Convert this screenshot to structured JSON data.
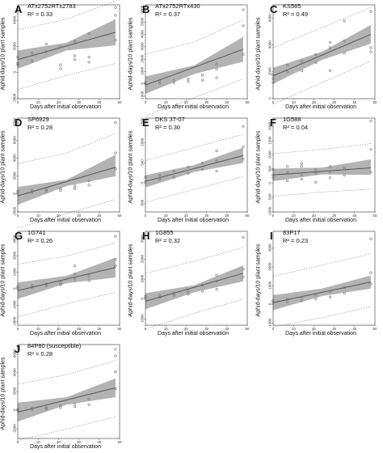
{
  "figure": {
    "y_axis_label": "Aphid-days/10 plant samples",
    "x_axis_label": "Days after initial observation"
  },
  "colors": {
    "band": "#a6a6a6",
    "trend_line": "#555555",
    "prediction_line": "#8a8a8a",
    "points": "#777777"
  },
  "chart_data": [
    {
      "type": "scatter",
      "label": "A",
      "genotype": "ATx2752RTx2783",
      "r2": "R² = 0.33",
      "ylim": [
        -2000,
        5200
      ],
      "yticks": [
        -2000,
        0,
        2000,
        4000
      ],
      "xlim": [
        0,
        50
      ],
      "xticks": [
        0,
        10,
        20,
        30,
        40,
        50
      ],
      "points": [
        [
          0,
          600
        ],
        [
          0,
          1200
        ],
        [
          0,
          700
        ],
        [
          7,
          900
        ],
        [
          7,
          1500
        ],
        [
          14,
          1600
        ],
        [
          14,
          2200
        ],
        [
          21,
          2000
        ],
        [
          21,
          600
        ],
        [
          21,
          300
        ],
        [
          28,
          2400
        ],
        [
          28,
          1300
        ],
        [
          28,
          1000
        ],
        [
          35,
          1200
        ],
        [
          35,
          800
        ],
        [
          35,
          3000
        ],
        [
          48,
          2500
        ],
        [
          48,
          5000
        ],
        [
          48,
          4400
        ]
      ],
      "trend": [
        [
          0,
          1000
        ],
        [
          48,
          3100
        ]
      ],
      "band": [
        [
          0,
          300,
          1700
        ],
        [
          24,
          1700,
          2300
        ],
        [
          48,
          2100,
          4100
        ]
      ],
      "pred_upper": [
        [
          0,
          3300
        ],
        [
          24,
          4100
        ],
        [
          48,
          5500
        ]
      ],
      "pred_lower": [
        [
          0,
          -1300
        ],
        [
          24,
          -200
        ],
        [
          48,
          700
        ]
      ]
    },
    {
      "type": "scatter",
      "label": "B",
      "genotype": "ATx2752RTx430",
      "r2": "R² = 0.37",
      "ylim": [
        -1200,
        6400
      ],
      "yticks": [
        -1000,
        0,
        1000,
        2000,
        3000,
        4000,
        5000,
        6000
      ],
      "xlim": [
        0,
        50
      ],
      "xticks": [
        0,
        10,
        20,
        30,
        40,
        50
      ],
      "points": [
        [
          0,
          0
        ],
        [
          0,
          100
        ],
        [
          7,
          50
        ],
        [
          7,
          200
        ],
        [
          14,
          100
        ],
        [
          14,
          300
        ],
        [
          21,
          200
        ],
        [
          21,
          400
        ],
        [
          28,
          300
        ],
        [
          28,
          700
        ],
        [
          35,
          500
        ],
        [
          35,
          1200
        ],
        [
          35,
          1600
        ],
        [
          48,
          6000
        ],
        [
          48,
          4700
        ],
        [
          48,
          2400
        ]
      ],
      "trend": [
        [
          0,
          -100
        ],
        [
          48,
          2800
        ]
      ],
      "band": [
        [
          0,
          -800,
          600
        ],
        [
          24,
          800,
          1500
        ],
        [
          48,
          1800,
          3800
        ]
      ],
      "pred_upper": [
        [
          0,
          2400
        ],
        [
          24,
          3400
        ],
        [
          48,
          5200
        ]
      ],
      "pred_lower": [
        [
          0,
          -2600
        ],
        [
          24,
          -1100
        ],
        [
          48,
          400
        ]
      ]
    },
    {
      "type": "scatter",
      "label": "C",
      "genotype": "KS585",
      "r2": "R² = 0.49",
      "ylim": [
        0,
        7000
      ],
      "yticks": [
        0,
        2000,
        4000,
        6000
      ],
      "xlim": [
        0,
        50
      ],
      "xticks": [
        0,
        10,
        20,
        30,
        40,
        50
      ],
      "points": [
        [
          0,
          1200
        ],
        [
          0,
          1500
        ],
        [
          0,
          1800
        ],
        [
          7,
          2000
        ],
        [
          7,
          2500
        ],
        [
          14,
          2100
        ],
        [
          14,
          2800
        ],
        [
          21,
          3300
        ],
        [
          21,
          2700
        ],
        [
          28,
          4200
        ],
        [
          28,
          3800
        ],
        [
          28,
          2100
        ],
        [
          35,
          4300
        ],
        [
          35,
          3400
        ],
        [
          35,
          5800
        ],
        [
          48,
          3500
        ],
        [
          48,
          6500
        ],
        [
          48,
          3800
        ]
      ],
      "trend": [
        [
          0,
          1700
        ],
        [
          48,
          4800
        ]
      ],
      "band": [
        [
          0,
          1100,
          2300
        ],
        [
          24,
          2900,
          3500
        ],
        [
          48,
          4100,
          5500
        ]
      ],
      "pred_upper": [
        [
          0,
          3800
        ],
        [
          24,
          5300
        ],
        [
          48,
          6800
        ]
      ],
      "pred_lower": [
        [
          0,
          -400
        ],
        [
          24,
          1200
        ],
        [
          48,
          2800
        ]
      ]
    },
    {
      "type": "scatter",
      "label": "D",
      "genotype": "SP6929",
      "r2": "R² = 0.28",
      "ylim": [
        -2000,
        8500
      ],
      "yticks": [
        -2000,
        0,
        2000,
        4000,
        6000,
        8000
      ],
      "xlim": [
        0,
        50
      ],
      "xticks": [
        0,
        10,
        20,
        30,
        40,
        50
      ],
      "points": [
        [
          0,
          100
        ],
        [
          0,
          300
        ],
        [
          7,
          200
        ],
        [
          7,
          400
        ],
        [
          14,
          300
        ],
        [
          14,
          500
        ],
        [
          21,
          400
        ],
        [
          21,
          600
        ],
        [
          28,
          600
        ],
        [
          28,
          900
        ],
        [
          35,
          1000
        ],
        [
          35,
          1500
        ],
        [
          48,
          8000
        ],
        [
          48,
          4600
        ],
        [
          48,
          2800
        ]
      ],
      "trend": [
        [
          0,
          -200
        ],
        [
          48,
          3000
        ]
      ],
      "band": [
        [
          0,
          -1200,
          800
        ],
        [
          24,
          900,
          1600
        ],
        [
          48,
          2000,
          4400
        ]
      ],
      "pred_upper": [
        [
          0,
          3400
        ],
        [
          24,
          4600
        ],
        [
          48,
          6800
        ]
      ],
      "pred_lower": [
        [
          0,
          -3800
        ],
        [
          24,
          -2200
        ],
        [
          48,
          -600
        ]
      ]
    },
    {
      "type": "scatter",
      "label": "E",
      "genotype": "DKS 37-07",
      "r2": "R² = 0.30",
      "ylim": [
        -700,
        1600
      ],
      "yticks": [
        -500,
        0,
        500,
        1000,
        1500
      ],
      "xlim": [
        0,
        50
      ],
      "xticks": [
        0,
        10,
        20,
        30,
        40,
        50
      ],
      "points": [
        [
          0,
          50
        ],
        [
          0,
          150
        ],
        [
          7,
          100
        ],
        [
          7,
          200
        ],
        [
          14,
          150
        ],
        [
          14,
          300
        ],
        [
          21,
          250
        ],
        [
          21,
          400
        ],
        [
          28,
          350
        ],
        [
          28,
          500
        ],
        [
          35,
          300
        ],
        [
          35,
          550
        ],
        [
          35,
          800
        ],
        [
          48,
          1400
        ],
        [
          48,
          600
        ],
        [
          48,
          900
        ]
      ],
      "trend": [
        [
          0,
          50
        ],
        [
          48,
          680
        ]
      ],
      "band": [
        [
          0,
          -100,
          200
        ],
        [
          24,
          280,
          450
        ],
        [
          48,
          500,
          880
        ]
      ],
      "pred_upper": [
        [
          0,
          560
        ],
        [
          24,
          880
        ],
        [
          48,
          1200
        ]
      ],
      "pred_lower": [
        [
          0,
          -460
        ],
        [
          24,
          -150
        ],
        [
          48,
          170
        ]
      ]
    },
    {
      "type": "scatter",
      "label": "F",
      "genotype": "1G588",
      "r2": "R² = 0.04",
      "ylim": [
        -1000,
        2300
      ],
      "yticks": [
        -1000,
        -500,
        0,
        500,
        1000,
        1500,
        2000
      ],
      "xlim": [
        0,
        50
      ],
      "xticks": [
        0,
        10,
        20,
        30,
        40,
        50
      ],
      "points": [
        [
          0,
          200
        ],
        [
          0,
          500
        ],
        [
          0,
          300
        ],
        [
          7,
          400
        ],
        [
          7,
          600
        ],
        [
          7,
          100
        ],
        [
          14,
          300
        ],
        [
          14,
          700
        ],
        [
          14,
          600
        ],
        [
          14,
          150
        ],
        [
          21,
          350
        ],
        [
          21,
          500
        ],
        [
          21,
          50
        ],
        [
          28,
          400
        ],
        [
          28,
          200
        ],
        [
          28,
          600
        ],
        [
          35,
          300
        ],
        [
          35,
          550
        ],
        [
          48,
          2200
        ],
        [
          48,
          1200
        ],
        [
          48,
          400
        ]
      ],
      "trend": [
        [
          0,
          300
        ],
        [
          48,
          550
        ]
      ],
      "band": [
        [
          0,
          80,
          520
        ],
        [
          24,
          320,
          560
        ],
        [
          48,
          300,
          850
        ]
      ],
      "pred_upper": [
        [
          0,
          1050
        ],
        [
          24,
          1200
        ],
        [
          48,
          1400
        ]
      ],
      "pred_lower": [
        [
          0,
          -450
        ],
        [
          24,
          -300
        ],
        [
          48,
          -200
        ]
      ]
    },
    {
      "type": "scatter",
      "label": "G",
      "genotype": "1G741",
      "r2": "R² = 0.26",
      "ylim": [
        -2200,
        3500
      ],
      "yticks": [
        -2000,
        -1000,
        0,
        1000,
        2000,
        3000
      ],
      "xlim": [
        0,
        50
      ],
      "xticks": [
        0,
        10,
        20,
        30,
        40,
        50
      ],
      "points": [
        [
          0,
          50
        ],
        [
          0,
          150
        ],
        [
          7,
          100
        ],
        [
          7,
          200
        ],
        [
          14,
          200
        ],
        [
          14,
          300
        ],
        [
          21,
          250
        ],
        [
          21,
          400
        ],
        [
          28,
          600
        ],
        [
          28,
          900
        ],
        [
          28,
          1400
        ],
        [
          35,
          500
        ],
        [
          35,
          800
        ],
        [
          48,
          3200
        ],
        [
          48,
          1800
        ],
        [
          48,
          1400
        ]
      ],
      "trend": [
        [
          0,
          -100
        ],
        [
          48,
          1300
        ]
      ],
      "band": [
        [
          0,
          -600,
          400
        ],
        [
          24,
          350,
          800
        ],
        [
          48,
          700,
          1900
        ]
      ],
      "pred_upper": [
        [
          0,
          1500
        ],
        [
          24,
          2000
        ],
        [
          48,
          2800
        ]
      ],
      "pred_lower": [
        [
          0,
          -1700
        ],
        [
          24,
          -900
        ],
        [
          48,
          -200
        ]
      ]
    },
    {
      "type": "scatter",
      "label": "H",
      "genotype": "1G855",
      "r2": "R² = 0.32",
      "ylim": [
        -1300,
        3400
      ],
      "yticks": [
        -1000,
        0,
        1000,
        2000,
        3000
      ],
      "xlim": [
        0,
        50
      ],
      "xticks": [
        0,
        10,
        20,
        30,
        40,
        50
      ],
      "points": [
        [
          0,
          50
        ],
        [
          0,
          150
        ],
        [
          7,
          100
        ],
        [
          7,
          200
        ],
        [
          14,
          200
        ],
        [
          14,
          300
        ],
        [
          21,
          250
        ],
        [
          21,
          400
        ],
        [
          28,
          400
        ],
        [
          28,
          700
        ],
        [
          35,
          500
        ],
        [
          35,
          900
        ],
        [
          35,
          1200
        ],
        [
          48,
          3100
        ],
        [
          48,
          1500
        ],
        [
          48,
          1100
        ]
      ],
      "trend": [
        [
          0,
          -100
        ],
        [
          48,
          1300
        ]
      ],
      "band": [
        [
          0,
          -500,
          300
        ],
        [
          24,
          350,
          700
        ],
        [
          48,
          900,
          1700
        ]
      ],
      "pred_upper": [
        [
          0,
          1300
        ],
        [
          24,
          1900
        ],
        [
          48,
          2600
        ]
      ],
      "pred_lower": [
        [
          0,
          -1500
        ],
        [
          24,
          -700
        ],
        [
          48,
          0
        ]
      ]
    },
    {
      "type": "scatter",
      "label": "I",
      "genotype": "83P17",
      "r2": "R² = 0.23",
      "ylim": [
        -1100,
        3900
      ],
      "yticks": [
        -1000,
        0,
        1000,
        2000,
        3000
      ],
      "xlim": [
        0,
        50
      ],
      "xticks": [
        0,
        10,
        20,
        30,
        40,
        50
      ],
      "points": [
        [
          0,
          100
        ],
        [
          0,
          200
        ],
        [
          7,
          150
        ],
        [
          7,
          300
        ],
        [
          14,
          200
        ],
        [
          14,
          400
        ],
        [
          21,
          300
        ],
        [
          21,
          500
        ],
        [
          28,
          400
        ],
        [
          28,
          700
        ],
        [
          35,
          600
        ],
        [
          35,
          900
        ],
        [
          48,
          3500
        ],
        [
          48,
          1700
        ],
        [
          48,
          1100
        ]
      ],
      "trend": [
        [
          0,
          100
        ],
        [
          48,
          1200
        ]
      ],
      "band": [
        [
          0,
          -300,
          500
        ],
        [
          24,
          450,
          850
        ],
        [
          48,
          850,
          1550
        ]
      ],
      "pred_upper": [
        [
          0,
          1500
        ],
        [
          24,
          2100
        ],
        [
          48,
          2700
        ]
      ],
      "pred_lower": [
        [
          0,
          -1200
        ],
        [
          24,
          -700
        ],
        [
          48,
          -100
        ]
      ]
    },
    {
      "type": "scatter",
      "label": "J",
      "genotype": "84P80 (susceptible)",
      "r2": "R² = 0.28",
      "ylim": [
        -3000,
        7000
      ],
      "yticks": [
        -2000,
        0,
        2000,
        4000,
        6000
      ],
      "xlim": [
        0,
        50
      ],
      "xticks": [
        0,
        10,
        20,
        30,
        40,
        50
      ],
      "points": [
        [
          0,
          0
        ],
        [
          0,
          100
        ],
        [
          7,
          100
        ],
        [
          7,
          200
        ],
        [
          14,
          150
        ],
        [
          14,
          300
        ],
        [
          21,
          300
        ],
        [
          21,
          500
        ],
        [
          28,
          400
        ],
        [
          28,
          700
        ],
        [
          35,
          600
        ],
        [
          35,
          1200
        ],
        [
          48,
          6500
        ],
        [
          48,
          5800
        ],
        [
          48,
          4100
        ],
        [
          48,
          2300
        ]
      ],
      "trend": [
        [
          0,
          -200
        ],
        [
          48,
          2400
        ]
      ],
      "band": [
        [
          0,
          -1200,
          800
        ],
        [
          24,
          600,
          1400
        ],
        [
          48,
          1400,
          3400
        ]
      ],
      "pred_upper": [
        [
          0,
          2800
        ],
        [
          24,
          3800
        ],
        [
          48,
          5300
        ]
      ],
      "pred_lower": [
        [
          0,
          -3200
        ],
        [
          24,
          -2000
        ],
        [
          48,
          -700
        ]
      ]
    }
  ]
}
